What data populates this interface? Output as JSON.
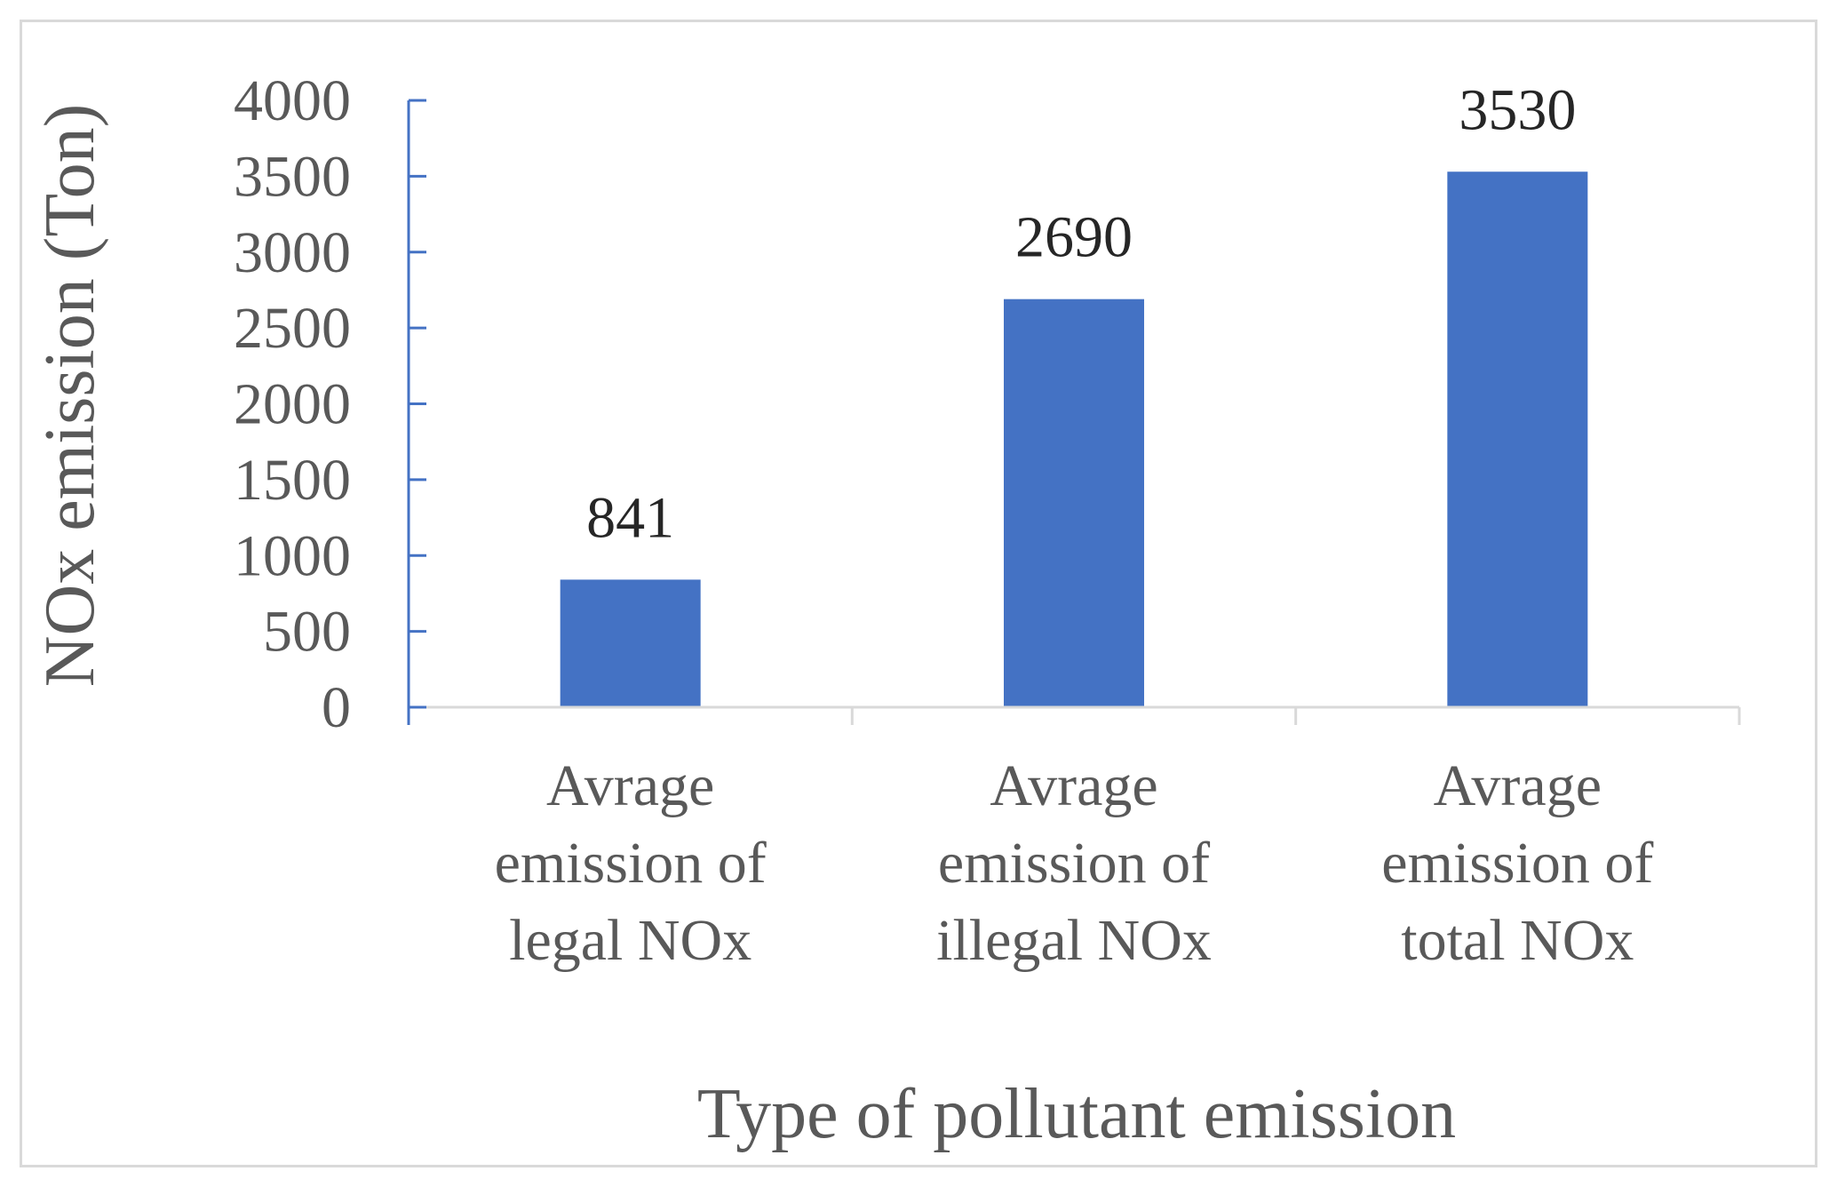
{
  "chart_data": {
    "type": "bar",
    "categories": [
      [
        "Avrage",
        "emission of",
        "legal NOx"
      ],
      [
        "Avrage",
        "emission of",
        "illegal NOx"
      ],
      [
        "Avrage",
        "emission of",
        "total NOx"
      ]
    ],
    "values": [
      841,
      2690,
      3530
    ],
    "data_labels": [
      "841",
      "2690",
      "3530"
    ],
    "title": "",
    "xlabel": "Type of pollutant emission",
    "ylabel": "NOx emission (Ton)",
    "ylim": [
      0,
      4000
    ],
    "yticks": [
      "0",
      "500",
      "1000",
      "1500",
      "2000",
      "2500",
      "3000",
      "3500",
      "4000"
    ],
    "grid": false,
    "legend": "none",
    "colors": {
      "bar": "#4472c4",
      "value_axis": "#4472c4",
      "category_axis": "#d9d9d9",
      "frame": "#d9d9d9",
      "text": "#595959",
      "data_label": "#262626"
    }
  }
}
